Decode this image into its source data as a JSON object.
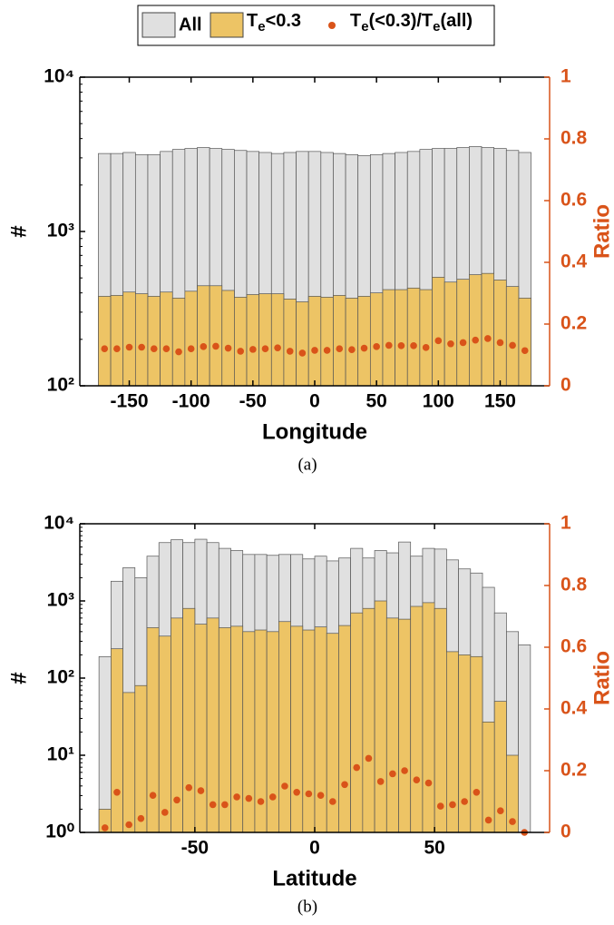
{
  "chart_data": [
    {
      "type": "histogram",
      "xlabel": "Longitude",
      "ylabel": "#",
      "y2label": "Ratio",
      "caption": "(a)",
      "bins": [
        -175,
        -165,
        -155,
        -145,
        -135,
        -125,
        -115,
        -105,
        -95,
        -85,
        -75,
        -65,
        -55,
        -45,
        -35,
        -25,
        -15,
        -5,
        5,
        15,
        25,
        35,
        45,
        55,
        65,
        75,
        85,
        95,
        105,
        115,
        125,
        135,
        145,
        155,
        165,
        175
      ],
      "series": [
        {
          "name": "All",
          "color": "#e0e0e0",
          "values": [
            3200,
            3200,
            3250,
            3150,
            3150,
            3300,
            3400,
            3450,
            3500,
            3450,
            3400,
            3350,
            3300,
            3250,
            3200,
            3250,
            3300,
            3300,
            3250,
            3200,
            3150,
            3100,
            3150,
            3200,
            3250,
            3300,
            3400,
            3450,
            3450,
            3500,
            3550,
            3500,
            3450,
            3350,
            3250
          ]
        },
        {
          "name": "Te<0.3",
          "color": "#edc465",
          "values": [
            380,
            385,
            405,
            395,
            380,
            405,
            370,
            410,
            445,
            445,
            415,
            375,
            390,
            395,
            395,
            365,
            350,
            380,
            375,
            385,
            370,
            380,
            400,
            420,
            420,
            430,
            420,
            505,
            470,
            490,
            525,
            535,
            485,
            440,
            370
          ]
        },
        {
          "name": "Te(<0.3)/Te(all)",
          "color": "#d95319",
          "axis": "y2",
          "values": [
            0.12,
            0.12,
            0.125,
            0.125,
            0.12,
            0.12,
            0.11,
            0.12,
            0.127,
            0.128,
            0.122,
            0.112,
            0.118,
            0.12,
            0.123,
            0.112,
            0.106,
            0.115,
            0.115,
            0.12,
            0.117,
            0.122,
            0.127,
            0.131,
            0.13,
            0.13,
            0.124,
            0.146,
            0.136,
            0.14,
            0.148,
            0.153,
            0.14,
            0.131,
            0.114
          ]
        }
      ],
      "xlim": [
        -190,
        190
      ],
      "xticks": [
        -150,
        -100,
        -50,
        0,
        50,
        100,
        150
      ],
      "ylim": [
        100,
        10000
      ],
      "log_y": true,
      "yticks": [
        {
          "value": 100,
          "label": "10²"
        },
        {
          "value": 1000,
          "label": "10³"
        },
        {
          "value": 10000,
          "label": "10⁴"
        }
      ],
      "y2lim": [
        0,
        1
      ],
      "y2ticks": [
        0,
        0.2,
        0.4,
        0.6,
        0.8,
        1
      ]
    },
    {
      "type": "histogram",
      "xlabel": "Latitude",
      "ylabel": "#",
      "y2label": "Ratio",
      "caption": "(b)",
      "bins": [
        -90,
        -85,
        -80,
        -75,
        -70,
        -65,
        -60,
        -55,
        -50,
        -45,
        -40,
        -35,
        -30,
        -25,
        -20,
        -15,
        -10,
        -5,
        0,
        5,
        10,
        15,
        20,
        25,
        30,
        35,
        40,
        45,
        50,
        55,
        60,
        65,
        70,
        75,
        80,
        85,
        90
      ],
      "series": [
        {
          "name": "All",
          "color": "#e0e0e0",
          "values": [
            190,
            1800,
            2700,
            2000,
            3800,
            5700,
            6200,
            5700,
            6300,
            5700,
            4800,
            4500,
            4000,
            4000,
            3900,
            4000,
            4000,
            3500,
            3800,
            3300,
            3600,
            4800,
            3600,
            4500,
            4200,
            5800,
            3800,
            4800,
            4700,
            3400,
            2600,
            2300,
            1500,
            700,
            400,
            270
          ]
        },
        {
          "name": "Te<0.3",
          "color": "#edc465",
          "values": [
            2,
            240,
            65,
            80,
            450,
            350,
            600,
            800,
            500,
            600,
            450,
            470,
            400,
            420,
            400,
            540,
            470,
            420,
            460,
            380,
            480,
            700,
            800,
            1000,
            600,
            580,
            850,
            950,
            800,
            220,
            200,
            190,
            27,
            50,
            10,
            null
          ]
        },
        {
          "name": "Te(<0.3)/Te(all)",
          "color": "#d95319",
          "axis": "y2",
          "values": [
            0.015,
            0.13,
            0.025,
            0.045,
            0.12,
            0.065,
            0.105,
            0.145,
            0.135,
            0.09,
            0.09,
            0.115,
            0.11,
            0.1,
            0.115,
            0.15,
            0.13,
            0.125,
            0.12,
            0.1,
            0.155,
            0.21,
            0.24,
            0.165,
            0.19,
            0.2,
            0.17,
            0.16,
            0.085,
            0.09,
            0.1,
            0.13,
            0.04,
            0.07,
            0.035,
            0
          ]
        }
      ],
      "xlim": [
        -98,
        98
      ],
      "xticks": [
        -50,
        0,
        50
      ],
      "ylim": [
        1,
        10000
      ],
      "log_y": true,
      "yticks": [
        {
          "value": 1,
          "label": "10⁰"
        },
        {
          "value": 10,
          "label": "10¹"
        },
        {
          "value": 100,
          "label": "10²"
        },
        {
          "value": 1000,
          "label": "10³"
        },
        {
          "value": 10000,
          "label": "10⁴"
        }
      ],
      "y2lim": [
        0,
        1
      ],
      "y2ticks": [
        0,
        0.2,
        0.4,
        0.6,
        0.8,
        1
      ]
    }
  ]
}
